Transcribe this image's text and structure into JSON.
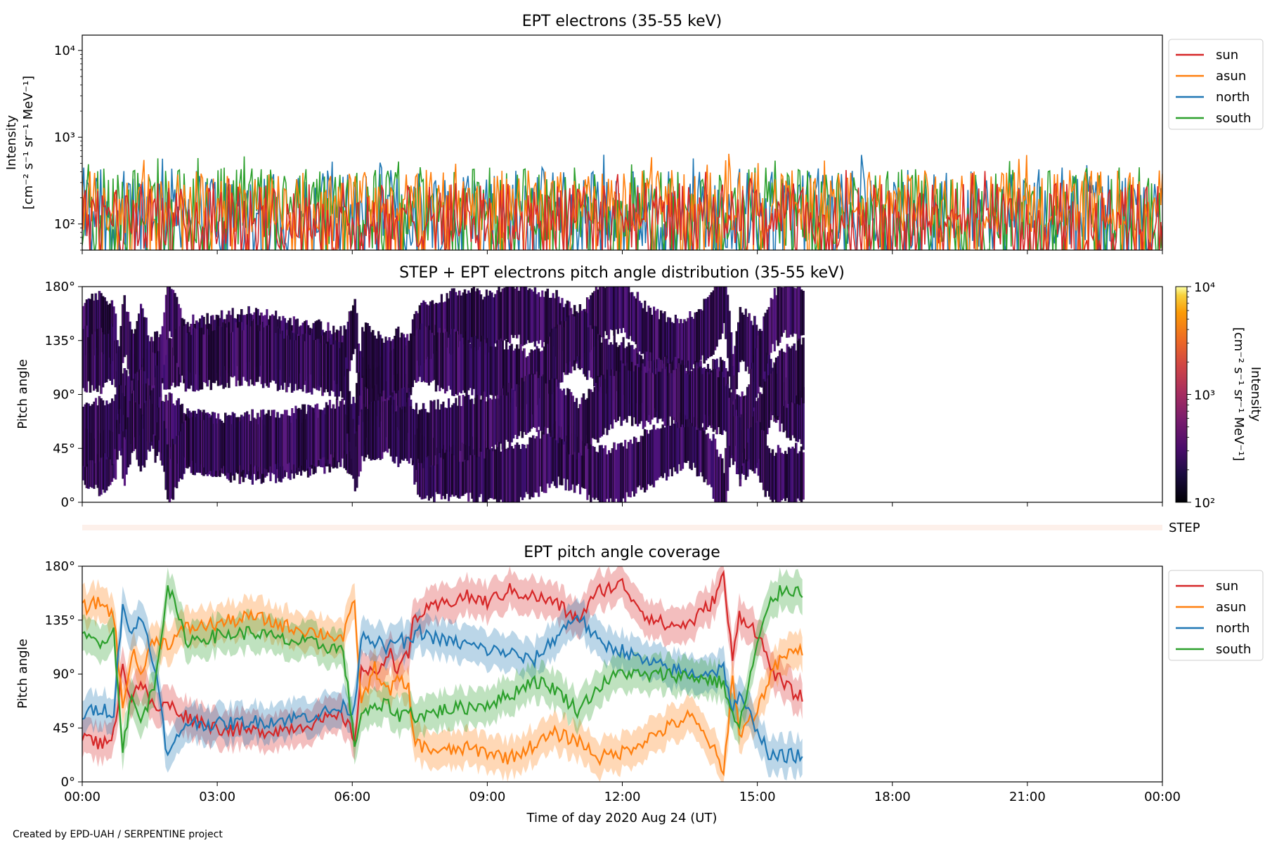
{
  "colors": {
    "sun": "#d62728",
    "asun": "#ff7f0e",
    "north": "#1f77b4",
    "south": "#2ca02c"
  },
  "credit": "Created by EPD-UAH / SERPENTINE project",
  "step_label": "STEP",
  "chart_data": [
    {
      "type": "line",
      "title": "EPT electrons (35-55 keV)",
      "ylabel_line1": "Intensity",
      "ylabel_line2": "[cm⁻² s⁻¹ sr⁻¹ MeV⁻¹]",
      "yscale": "log",
      "ylim": [
        50,
        15000
      ],
      "yticks": [
        {
          "value": 100,
          "label": "10²"
        },
        {
          "value": 1000,
          "label": "10³"
        },
        {
          "value": 10000,
          "label": "10⁴"
        }
      ],
      "xlim_hours": [
        0,
        24
      ],
      "legend_position": "outside-right-top",
      "series": [
        {
          "name": "north",
          "color_key": "north",
          "typical_range": [
            50,
            450
          ],
          "max": 640
        },
        {
          "name": "south",
          "color_key": "south",
          "typical_range": [
            50,
            450
          ],
          "max": 620
        },
        {
          "name": "asun",
          "color_key": "asun",
          "typical_range": [
            80,
            420
          ],
          "max": 690
        },
        {
          "name": "sun",
          "color_key": "sun",
          "typical_range": [
            50,
            300
          ],
          "max": 420
        }
      ],
      "legend_order": [
        "sun",
        "asun",
        "north",
        "south"
      ]
    },
    {
      "type": "heatmap",
      "title": "STEP + EPT electrons pitch angle distribution (35-55 keV)",
      "ylabel": "Pitch angle",
      "ylim": [
        0,
        180
      ],
      "yticks": [
        "0°",
        "45°",
        "90°",
        "135°",
        "180°"
      ],
      "xlim_hours": [
        0,
        24
      ],
      "data_end_hour": 16,
      "colorbar": {
        "scale": "log",
        "range": [
          100,
          10000
        ],
        "ticks": [
          "10²",
          "10³",
          "10⁴"
        ],
        "label_line1": "Intensity",
        "label_line2": "[cm⁻² s⁻¹ sr⁻¹ MeV⁻¹]",
        "colormap": "inferno"
      },
      "typical_intensity": 200
    },
    {
      "type": "line",
      "title": "EPT pitch angle coverage",
      "ylabel": "Pitch angle",
      "xlabel": "Time of day 2020 Aug 24 (UT)",
      "ylim": [
        0,
        180
      ],
      "yticks": [
        "0°",
        "45°",
        "90°",
        "135°",
        "180°"
      ],
      "xlim_hours": [
        0,
        24
      ],
      "xticks": [
        "00:00",
        "03:00",
        "06:00",
        "09:00",
        "12:00",
        "15:00",
        "18:00",
        "21:00",
        "00:00"
      ],
      "legend_position": "outside-right-top",
      "band_halfwidth_deg": 15,
      "series": [
        {
          "name": "sun",
          "color_key": "sun",
          "x": [
            0,
            0.4,
            0.7,
            0.9,
            1.1,
            1.3,
            1.6,
            1.9,
            2.3,
            3.0,
            3.8,
            4.5,
            5.2,
            5.8,
            6.05,
            6.2,
            6.5,
            6.8,
            7.0,
            7.25,
            7.35,
            7.5,
            8.0,
            8.5,
            9.0,
            9.5,
            10.0,
            10.5,
            11.0,
            11.5,
            12.0,
            12.5,
            13.0,
            13.5,
            14.0,
            14.25,
            14.45,
            14.6,
            15.0,
            15.3,
            15.6,
            16.0
          ],
          "y": [
            38,
            32,
            40,
            95,
            70,
            85,
            60,
            65,
            55,
            45,
            42,
            44,
            50,
            55,
            35,
            95,
            88,
            110,
            95,
            105,
            135,
            140,
            148,
            155,
            150,
            160,
            155,
            150,
            135,
            160,
            165,
            140,
            130,
            132,
            150,
            172,
            100,
            140,
            125,
            95,
            80,
            70
          ]
        },
        {
          "name": "asun",
          "color_key": "asun",
          "x": [
            0,
            0.4,
            0.7,
            0.9,
            1.1,
            1.3,
            1.6,
            1.9,
            2.3,
            3.0,
            3.8,
            4.5,
            5.2,
            5.8,
            6.05,
            6.2,
            6.5,
            6.8,
            7.0,
            7.25,
            7.35,
            7.5,
            8.0,
            8.5,
            9.0,
            9.5,
            10.0,
            10.5,
            11.0,
            11.5,
            12.0,
            12.5,
            13.0,
            13.5,
            14.0,
            14.25,
            14.45,
            14.6,
            15.0,
            15.3,
            15.6,
            16.0
          ],
          "y": [
            145,
            150,
            140,
            60,
            110,
            90,
            120,
            115,
            128,
            132,
            138,
            130,
            125,
            120,
            150,
            65,
            95,
            75,
            85,
            78,
            40,
            30,
            25,
            28,
            25,
            20,
            30,
            40,
            35,
            20,
            25,
            35,
            45,
            55,
            30,
            5,
            90,
            40,
            60,
            90,
            105,
            110
          ]
        },
        {
          "name": "north",
          "color_key": "north",
          "x": [
            0,
            0.4,
            0.7,
            0.9,
            1.1,
            1.3,
            1.6,
            1.9,
            2.3,
            3.0,
            3.8,
            4.5,
            5.2,
            5.8,
            6.05,
            6.2,
            6.5,
            6.8,
            7.0,
            7.25,
            7.35,
            7.5,
            8.0,
            8.5,
            9.0,
            9.5,
            10.0,
            10.5,
            11.0,
            11.5,
            12.0,
            12.5,
            13.0,
            13.5,
            14.0,
            14.25,
            14.45,
            14.6,
            15.0,
            15.3,
            15.6,
            16.0
          ],
          "y": [
            55,
            62,
            58,
            150,
            120,
            140,
            100,
            20,
            50,
            48,
            50,
            52,
            56,
            62,
            60,
            125,
            118,
            110,
            120,
            115,
            120,
            125,
            118,
            115,
            110,
            108,
            100,
            120,
            140,
            115,
            110,
            100,
            95,
            90,
            92,
            95,
            60,
            70,
            45,
            20,
            22,
            22
          ]
        },
        {
          "name": "south",
          "color_key": "south",
          "x": [
            0,
            0.4,
            0.7,
            0.9,
            1.1,
            1.3,
            1.6,
            1.9,
            2.3,
            3.0,
            3.8,
            4.5,
            5.2,
            5.8,
            6.05,
            6.2,
            6.5,
            6.8,
            7.0,
            7.25,
            7.35,
            7.5,
            8.0,
            8.5,
            9.0,
            9.5,
            10.0,
            10.5,
            11.0,
            11.5,
            12.0,
            12.5,
            13.0,
            13.5,
            14.0,
            14.25,
            14.45,
            14.6,
            15.0,
            15.3,
            15.6,
            16.0
          ],
          "y": [
            120,
            118,
            125,
            30,
            70,
            50,
            80,
            165,
            118,
            122,
            125,
            118,
            115,
            110,
            30,
            58,
            60,
            65,
            55,
            60,
            55,
            55,
            60,
            62,
            65,
            72,
            85,
            78,
            60,
            80,
            92,
            88,
            90,
            88,
            85,
            82,
            55,
            45,
            115,
            150,
            162,
            158
          ]
        }
      ],
      "legend_order": [
        "sun",
        "asun",
        "north",
        "south"
      ]
    }
  ]
}
